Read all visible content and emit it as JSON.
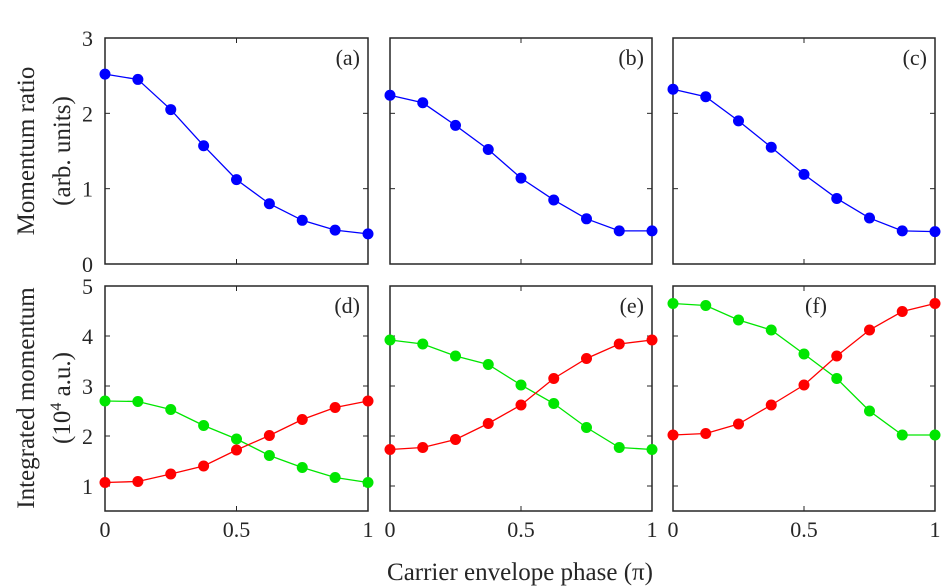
{
  "labels": {
    "xlabel": "Carrier envelope phase (π)",
    "ylabel_top_line1": "Momentum ratio",
    "ylabel_top_line2": "(arb. units)",
    "ylabel_bottom_line1": "Integrated momentum",
    "ylabel_bottom_line2_prefix": "(10",
    "ylabel_bottom_line2_sup": "4",
    "ylabel_bottom_line2_suffix": " a.u.)"
  },
  "colors": {
    "blue": "#0000ff",
    "red": "#ff0000",
    "green": "#00e600",
    "axis": "#262626"
  },
  "x_ticks": [
    "0",
    "0.5",
    "1"
  ],
  "top_y_ticks": [
    "0",
    "1",
    "2",
    "3"
  ],
  "bottom_y_ticks": [
    "1",
    "2",
    "3",
    "4",
    "5"
  ],
  "chart_data": [
    {
      "panel": "(a)",
      "type": "line",
      "xlim": [
        0,
        1
      ],
      "ylim": [
        0,
        3
      ],
      "x": [
        0,
        0.125,
        0.25,
        0.375,
        0.5,
        0.625,
        0.75,
        0.875,
        1
      ],
      "series": [
        {
          "color": "#0000ff",
          "values": [
            2.52,
            2.45,
            2.05,
            1.57,
            1.12,
            0.8,
            0.58,
            0.45,
            0.4
          ]
        }
      ]
    },
    {
      "panel": "(b)",
      "type": "line",
      "xlim": [
        0,
        1
      ],
      "ylim": [
        0,
        3
      ],
      "x": [
        0,
        0.125,
        0.25,
        0.375,
        0.5,
        0.625,
        0.75,
        0.875,
        1
      ],
      "series": [
        {
          "color": "#0000ff",
          "values": [
            2.24,
            2.14,
            1.84,
            1.52,
            1.14,
            0.85,
            0.6,
            0.44,
            0.44
          ]
        }
      ]
    },
    {
      "panel": "(c)",
      "type": "line",
      "xlim": [
        0,
        1
      ],
      "ylim": [
        0,
        3
      ],
      "x": [
        0,
        0.125,
        0.25,
        0.375,
        0.5,
        0.625,
        0.75,
        0.875,
        1
      ],
      "series": [
        {
          "color": "#0000ff",
          "values": [
            2.32,
            2.22,
            1.9,
            1.55,
            1.19,
            0.87,
            0.61,
            0.44,
            0.43
          ]
        }
      ]
    },
    {
      "panel": "(d)",
      "type": "line",
      "xlim": [
        0,
        1
      ],
      "ylim": [
        0.5,
        5
      ],
      "x": [
        0,
        0.125,
        0.25,
        0.375,
        0.5,
        0.625,
        0.75,
        0.875,
        1
      ],
      "series": [
        {
          "color": "#00e600",
          "values": [
            2.7,
            2.69,
            2.53,
            2.21,
            1.94,
            1.61,
            1.37,
            1.17,
            1.07
          ]
        },
        {
          "color": "#ff0000",
          "values": [
            1.07,
            1.09,
            1.24,
            1.4,
            1.72,
            2.01,
            2.33,
            2.57,
            2.7
          ]
        }
      ]
    },
    {
      "panel": "(e)",
      "type": "line",
      "xlim": [
        0,
        1
      ],
      "ylim": [
        0.5,
        5
      ],
      "x": [
        0,
        0.125,
        0.25,
        0.375,
        0.5,
        0.625,
        0.75,
        0.875,
        1
      ],
      "series": [
        {
          "color": "#00e600",
          "values": [
            3.92,
            3.84,
            3.6,
            3.43,
            3.02,
            2.65,
            2.17,
            1.77,
            1.73
          ]
        },
        {
          "color": "#ff0000",
          "values": [
            1.73,
            1.77,
            1.93,
            2.25,
            2.62,
            3.15,
            3.55,
            3.84,
            3.92
          ]
        }
      ]
    },
    {
      "panel": "(f)",
      "type": "line",
      "xlim": [
        0,
        1
      ],
      "ylim": [
        0.5,
        5
      ],
      "x": [
        0,
        0.125,
        0.25,
        0.375,
        0.5,
        0.625,
        0.75,
        0.875,
        1
      ],
      "series": [
        {
          "color": "#00e600",
          "values": [
            4.65,
            4.61,
            4.32,
            4.12,
            3.64,
            3.15,
            2.5,
            2.02,
            2.02
          ]
        },
        {
          "color": "#ff0000",
          "values": [
            2.02,
            2.05,
            2.24,
            2.62,
            3.02,
            3.6,
            4.12,
            4.49,
            4.65
          ]
        }
      ]
    }
  ]
}
